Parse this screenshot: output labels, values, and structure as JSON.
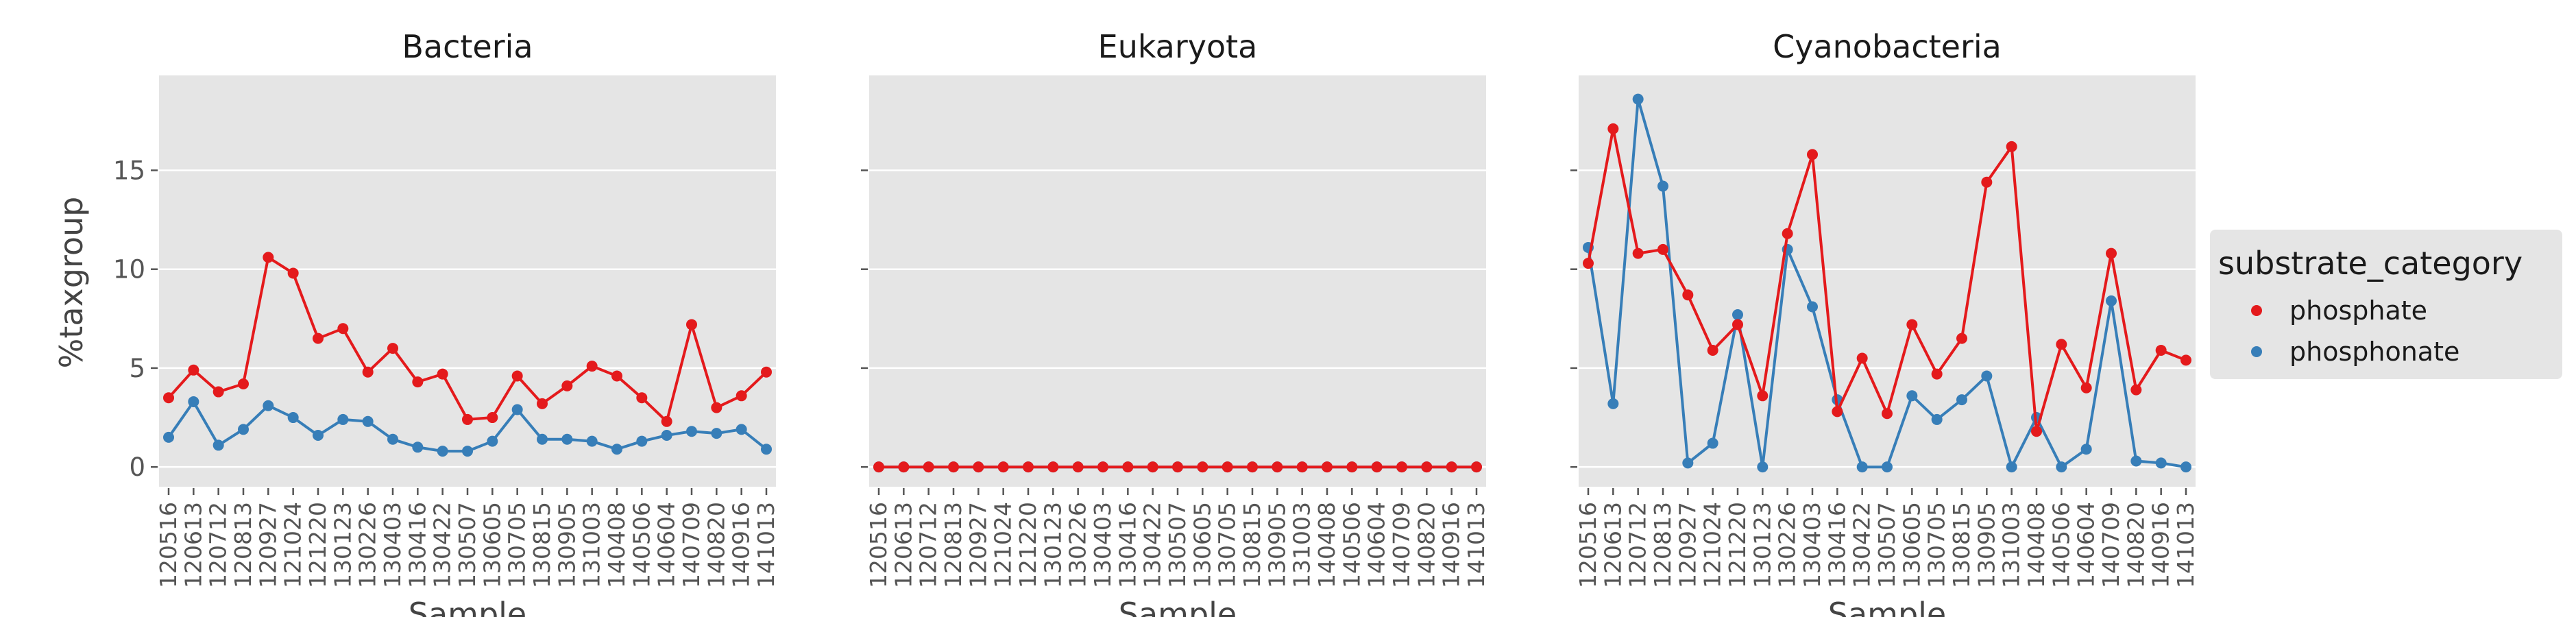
{
  "chart_data": {
    "type": "line",
    "ylabel": "%taxgroup",
    "xlabel": "Sample",
    "yticks": [
      0,
      5,
      10,
      15
    ],
    "ylim": [
      -1,
      19.8
    ],
    "grid": true,
    "legend": {
      "title": "substrate_category",
      "placement": "right",
      "entries": [
        {
          "name": "phosphate",
          "color": "#e41a1c"
        },
        {
          "name": "phosphonate",
          "color": "#377eb8"
        }
      ]
    },
    "categories": [
      "120516",
      "120613",
      "120712",
      "120813",
      "120927",
      "121024",
      "121220",
      "130123",
      "130226",
      "130403",
      "130416",
      "130422",
      "130507",
      "130605",
      "130705",
      "130815",
      "130905",
      "131003",
      "140408",
      "140506",
      "140604",
      "140709",
      "140820",
      "140916",
      "141013"
    ],
    "panels": [
      {
        "title": "Bacteria",
        "series": [
          {
            "name": "phosphate",
            "values": [
              3.5,
              4.9,
              3.8,
              4.2,
              10.6,
              9.8,
              6.5,
              7.0,
              4.8,
              6.0,
              4.3,
              4.7,
              2.4,
              2.5,
              4.6,
              3.2,
              4.1,
              5.1,
              4.6,
              3.5,
              2.3,
              7.2,
              3.0,
              3.6,
              4.8
            ]
          },
          {
            "name": "phosphonate",
            "values": [
              1.5,
              3.3,
              1.1,
              1.9,
              3.1,
              2.5,
              1.6,
              2.4,
              2.3,
              1.4,
              1.0,
              0.8,
              0.8,
              1.3,
              2.9,
              1.4,
              1.4,
              1.3,
              0.9,
              1.3,
              1.6,
              1.8,
              1.7,
              1.9,
              0.9
            ]
          }
        ]
      },
      {
        "title": "Eukaryota",
        "series": [
          {
            "name": "phosphate",
            "values": [
              0,
              0,
              0,
              0,
              0,
              0,
              0,
              0,
              0,
              0,
              0,
              0,
              0,
              0,
              0,
              0,
              0,
              0,
              0,
              0,
              0,
              0,
              0,
              0,
              0
            ]
          },
          {
            "name": "phosphonate",
            "values": [
              0,
              0,
              0,
              0,
              0,
              0,
              0,
              0,
              0,
              0,
              0,
              0,
              0,
              0,
              0,
              0,
              0,
              0,
              0,
              0,
              0,
              0,
              0,
              0,
              0
            ]
          }
        ]
      },
      {
        "title": "Cyanobacteria",
        "series": [
          {
            "name": "phosphate",
            "values": [
              10.3,
              17.1,
              10.8,
              11.0,
              8.7,
              5.9,
              7.2,
              3.6,
              11.8,
              15.8,
              2.8,
              5.5,
              2.7,
              7.2,
              4.7,
              6.5,
              14.4,
              16.2,
              1.8,
              6.2,
              4.0,
              10.8,
              3.9,
              5.9,
              5.4
            ]
          },
          {
            "name": "phosphonate",
            "values": [
              11.1,
              3.2,
              18.6,
              14.2,
              0.2,
              1.2,
              7.7,
              0.0,
              11.0,
              8.1,
              3.4,
              0.0,
              0.0,
              3.6,
              2.4,
              3.4,
              4.6,
              0.0,
              2.5,
              0.0,
              0.9,
              8.4,
              0.3,
              0.2,
              0.0
            ]
          }
        ]
      }
    ]
  }
}
